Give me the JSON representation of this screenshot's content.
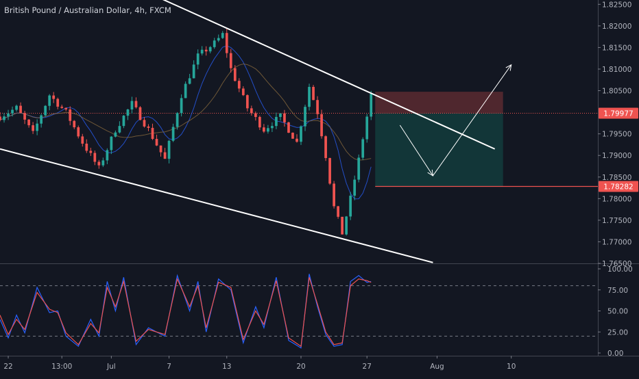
{
  "header": {
    "title": "British Pound / Australian Dollar, 4h, FXCM"
  },
  "colors": {
    "background": "#131722",
    "up": "#26a69a",
    "down": "#ef5350",
    "grid": "#1e222d",
    "axis_text": "#b2b5be",
    "trendline": "#ffffff",
    "ma_fast": "#2962ff",
    "ma_slow": "#8d6e3f",
    "stoch_k": "#2962ff",
    "stoch_d": "#ef5350",
    "current_price_tag": "#ef5350",
    "stop_zone": "#5a2a30",
    "target_zone": "#12383a"
  },
  "chart_data": [
    {
      "type": "candlestick",
      "title": "British Pound / Australian Dollar, 4h, FXCM",
      "x_tick_labels": [
        "22",
        "13:00",
        "Jul",
        "7",
        "13",
        "20",
        "27",
        "Aug",
        "10"
      ],
      "y_tick_labels": [
        "1.82500",
        "1.82000",
        "1.81500",
        "1.81000",
        "1.80500",
        "1.79500",
        "1.79000",
        "1.78500",
        "1.78000",
        "1.77500",
        "1.77000",
        "1.76500"
      ],
      "ylim": [
        1.765,
        1.826
      ],
      "grid": false,
      "x_index_range": [
        0,
        145
      ],
      "x_ticks": [
        2,
        15,
        27,
        41,
        55,
        73,
        89,
        106,
        124
      ],
      "price_tags": [
        {
          "value": 1.79977,
          "label": "1.79977",
          "kind": "current"
        },
        {
          "value": 1.78282,
          "label": "1.78282",
          "kind": "level"
        }
      ],
      "anchors": [
        [
          0,
          1.799
        ],
        [
          4,
          1.801
        ],
        [
          8,
          1.795
        ],
        [
          12,
          1.804
        ],
        [
          16,
          1.8
        ],
        [
          20,
          1.793
        ],
        [
          24,
          1.787
        ],
        [
          28,
          1.796
        ],
        [
          32,
          1.802
        ],
        [
          36,
          1.796
        ],
        [
          40,
          1.789
        ],
        [
          44,
          1.804
        ],
        [
          48,
          1.813
        ],
        [
          52,
          1.816
        ],
        [
          54,
          1.818
        ],
        [
          56,
          1.81
        ],
        [
          60,
          1.801
        ],
        [
          64,
          1.796
        ],
        [
          68,
          1.799
        ],
        [
          72,
          1.793
        ],
        [
          75,
          1.806
        ],
        [
          77,
          1.8
        ],
        [
          79,
          1.79
        ],
        [
          81,
          1.778
        ],
        [
          83,
          1.772
        ],
        [
          85,
          1.78
        ],
        [
          87,
          1.789
        ],
        [
          89,
          1.799
        ],
        [
          90,
          1.804
        ]
      ],
      "trendlines": [
        {
          "name": "upper channel",
          "from": [
            34,
            1.8285
          ],
          "to": [
            120,
            1.7915
          ]
        },
        {
          "name": "lower channel",
          "from": [
            0,
            1.7915
          ],
          "to": [
            105,
            1.7652
          ]
        }
      ],
      "position": {
        "x_from": 91,
        "x_to": 122,
        "stop_from": 1.79977,
        "stop_to": 1.80475,
        "target_from": 1.78282,
        "target_to": 1.79977
      },
      "projection": [
        [
          97,
          1.797
        ],
        [
          105,
          1.7853
        ],
        [
          124,
          1.811
        ]
      ]
    },
    {
      "type": "line",
      "title": "Stochastic",
      "y_tick_labels": [
        "100.00",
        "75.00",
        "50.00",
        "25.00",
        "0.00"
      ],
      "ylim": [
        0,
        100
      ],
      "levels": [
        80,
        20
      ],
      "series": [
        {
          "color": "#2962ff",
          "anchors": [
            [
              0,
              40
            ],
            [
              2,
              18
            ],
            [
              4,
              45
            ],
            [
              6,
              24
            ],
            [
              9,
              78
            ],
            [
              12,
              48
            ],
            [
              14,
              50
            ],
            [
              16,
              20
            ],
            [
              19,
              8
            ],
            [
              22,
              40
            ],
            [
              24,
              20
            ],
            [
              26,
              85
            ],
            [
              28,
              50
            ],
            [
              30,
              90
            ],
            [
              33,
              10
            ],
            [
              36,
              30
            ],
            [
              40,
              20
            ],
            [
              43,
              92
            ],
            [
              46,
              50
            ],
            [
              48,
              85
            ],
            [
              50,
              25
            ],
            [
              53,
              88
            ],
            [
              56,
              75
            ],
            [
              59,
              12
            ],
            [
              62,
              55
            ],
            [
              64,
              30
            ],
            [
              67,
              90
            ],
            [
              70,
              15
            ],
            [
              73,
              6
            ],
            [
              75,
              94
            ],
            [
              77,
              55
            ],
            [
              79,
              22
            ],
            [
              81,
              8
            ],
            [
              83,
              10
            ],
            [
              85,
              85
            ],
            [
              87,
              92
            ],
            [
              89,
              84
            ],
            [
              90,
              85
            ]
          ]
        },
        {
          "color": "#ef5350",
          "anchors": [
            [
              0,
              45
            ],
            [
              2,
              22
            ],
            [
              4,
              40
            ],
            [
              6,
              28
            ],
            [
              9,
              72
            ],
            [
              12,
              52
            ],
            [
              14,
              48
            ],
            [
              16,
              24
            ],
            [
              19,
              10
            ],
            [
              22,
              35
            ],
            [
              24,
              24
            ],
            [
              26,
              78
            ],
            [
              28,
              55
            ],
            [
              30,
              85
            ],
            [
              33,
              14
            ],
            [
              36,
              28
            ],
            [
              40,
              22
            ],
            [
              43,
              88
            ],
            [
              46,
              55
            ],
            [
              48,
              80
            ],
            [
              50,
              30
            ],
            [
              53,
              84
            ],
            [
              56,
              78
            ],
            [
              59,
              16
            ],
            [
              62,
              50
            ],
            [
              64,
              34
            ],
            [
              67,
              86
            ],
            [
              70,
              18
            ],
            [
              73,
              8
            ],
            [
              75,
              90
            ],
            [
              77,
              58
            ],
            [
              79,
              25
            ],
            [
              81,
              10
            ],
            [
              83,
              12
            ],
            [
              85,
              80
            ],
            [
              87,
              88
            ],
            [
              89,
              86
            ],
            [
              90,
              84
            ]
          ]
        }
      ]
    }
  ]
}
